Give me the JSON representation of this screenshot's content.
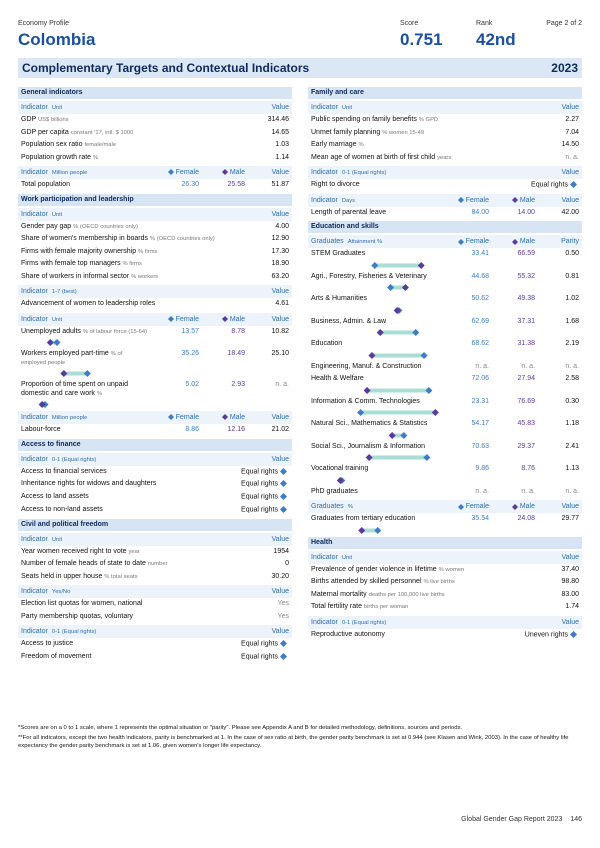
{
  "header": {
    "label": "Economy Profile",
    "country": "Colombia",
    "score_label": "Score",
    "score": "0.751",
    "rank_label": "Rank",
    "rank": "42nd",
    "page": "Page 2 of 2"
  },
  "title": "Complementary Targets and Contextual Indicators",
  "year": "2023",
  "colors": {
    "female": "#3d7cc9",
    "male": "#5b3a9e",
    "track": "#a9ddd6"
  },
  "left": [
    {
      "title": "General indicators",
      "blocks": [
        {
          "type": "table",
          "head": [
            "Indicator",
            "Unit",
            "Value"
          ],
          "rows": [
            {
              "name": "GDP",
              "unit": "US$ billions",
              "values": [
                "314.46"
              ]
            },
            {
              "name": "GDP per capita",
              "unit": "constant '17, intl. $ 1000",
              "values": [
                "14.65"
              ]
            },
            {
              "name": "Population sex ratio",
              "unit": "female/male",
              "values": [
                "1.03"
              ]
            },
            {
              "name": "Population growth rate",
              "unit": "%",
              "values": [
                "1.14"
              ]
            }
          ]
        },
        {
          "type": "table",
          "head": [
            "Indicator",
            "Million people",
            "Female",
            "Male",
            "Value"
          ],
          "rows": [
            {
              "name": "Total population",
              "values": [
                "26.30",
                "25.58",
                "51.87"
              ]
            }
          ]
        }
      ]
    },
    {
      "title": "Work participation and leadership",
      "blocks": [
        {
          "type": "table",
          "head": [
            "Indicator",
            "Unit",
            "Value"
          ],
          "rows": [
            {
              "name": "Gender pay gap",
              "unit": "% (OECD countries only)",
              "values": [
                "4.00"
              ]
            },
            {
              "name": "Share of women's membership in boards",
              "unit": "% (OECD countries only)",
              "values": [
                "12.90"
              ]
            },
            {
              "name": "Firms with female majority ownership",
              "unit": "% firms",
              "values": [
                "17.30"
              ]
            },
            {
              "name": "Firms with female top managers",
              "unit": "% firms",
              "values": [
                "18.90"
              ]
            },
            {
              "name": "Share of workers in informal sector",
              "unit": "% workers",
              "values": [
                "63.20"
              ]
            }
          ]
        },
        {
          "type": "table",
          "head": [
            "Indicator",
            "1-7 (best)",
            "Value"
          ],
          "rows": [
            {
              "name": "Advancement of women to leadership roles",
              "values": [
                "4.61"
              ]
            }
          ]
        },
        {
          "type": "gender-bars",
          "head": [
            "Indicator",
            "Unit",
            "Female",
            "Male",
            "Value"
          ],
          "rows": [
            {
              "name": "Unemployed adults",
              "unit": "% of labour force (15-64)",
              "values": [
                "13.57",
                "8.78",
                "10.82"
              ]
            },
            {
              "name": "Workers employed part-time",
              "unit": "% of employed people",
              "values": [
                "35.26",
                "18.49",
                "25.10"
              ]
            },
            {
              "name": "Proportion of time spent on unpaid domestic and care work",
              "unit": "%",
              "values": [
                "5.02",
                "2.93",
                "n. a."
              ]
            }
          ]
        },
        {
          "type": "table",
          "head": [
            "Indicator",
            "Million people",
            "Female",
            "Male",
            "Value"
          ],
          "rows": [
            {
              "name": "Labour-force",
              "values": [
                "8.86",
                "12.16",
                "21.02"
              ]
            }
          ]
        }
      ]
    },
    {
      "title": "Access to finance",
      "blocks": [
        {
          "type": "rights",
          "head": [
            "Indicator",
            "0-1 (Equal rights)",
            "Value"
          ],
          "rows": [
            {
              "name": "Access to financial services",
              "values": [
                "Equal rights"
              ]
            },
            {
              "name": "Inheritance rights for widows and daughters",
              "values": [
                "Equal rights"
              ]
            },
            {
              "name": "Access to land assets",
              "values": [
                "Equal rights"
              ]
            },
            {
              "name": "Access to non-land assets",
              "values": [
                "Equal rights"
              ]
            }
          ]
        }
      ]
    },
    {
      "title": "Civil and political freedom",
      "blocks": [
        {
          "type": "table",
          "head": [
            "Indicator",
            "Unit",
            "Value"
          ],
          "rows": [
            {
              "name": "Year women received right to vote",
              "unit": "year",
              "values": [
                "1954"
              ]
            },
            {
              "name": "Number of female heads of state to date",
              "unit": "number",
              "values": [
                "0"
              ]
            },
            {
              "name": "Seats held in upper house",
              "unit": "% total seats",
              "values": [
                "30.20"
              ]
            }
          ]
        },
        {
          "type": "table",
          "head": [
            "Indicator",
            "Yes/No",
            "Value"
          ],
          "rows": [
            {
              "name": "Election list quotas for women, national",
              "values": [
                "Yes"
              ]
            },
            {
              "name": "Party membership quotas, voluntary",
              "values": [
                "Yes"
              ]
            }
          ]
        },
        {
          "type": "rights",
          "head": [
            "Indicator",
            "0-1 (Equal rights)",
            "Value"
          ],
          "rows": [
            {
              "name": "Access to justice",
              "values": [
                "Equal rights"
              ]
            },
            {
              "name": "Freedom of movement",
              "values": [
                "Equal rights"
              ]
            }
          ]
        }
      ]
    }
  ],
  "right": [
    {
      "title": "Family and care",
      "blocks": [
        {
          "type": "table",
          "head": [
            "Indicator",
            "Unit",
            "Value"
          ],
          "rows": [
            {
              "name": "Public spending on family benefits",
              "unit": "% GPD",
              "values": [
                "2.27"
              ]
            },
            {
              "name": "Unmet family planning",
              "unit": "% women 15-49",
              "values": [
                "7.04"
              ]
            },
            {
              "name": "Early marriage",
              "unit": "%",
              "values": [
                "14.50"
              ]
            },
            {
              "name": "Mean age of women at birth of first child",
              "unit": "years",
              "values": [
                "n. a."
              ]
            }
          ]
        },
        {
          "type": "rights",
          "head": [
            "Indicator",
            "0-1 (Equal rights)",
            "Value"
          ],
          "rows": [
            {
              "name": "Right to divorce",
              "values": [
                "Equal rights"
              ]
            }
          ]
        },
        {
          "type": "table",
          "head": [
            "Indicator",
            "Days",
            "Female",
            "Male",
            "Value"
          ],
          "rows": [
            {
              "name": "Length of parental leave",
              "values": [
                "84.00",
                "14.00",
                "42.00"
              ]
            }
          ]
        }
      ]
    },
    {
      "title": "Education and skills",
      "blocks": [
        {
          "type": "gender-bars",
          "head": [
            "Graduates",
            "Attainment %",
            "Female",
            "Male",
            "Parity"
          ],
          "rows": [
            {
              "name": "STEM Graduates",
              "values": [
                "33.41",
                "66.59",
                "0.50"
              ]
            },
            {
              "name": "Agri., Forestry, Fisheries & Veterinary",
              "values": [
                "44.68",
                "55.32",
                "0.81"
              ]
            },
            {
              "name": "Arts & Humanities",
              "values": [
                "50.62",
                "49.38",
                "1.02"
              ]
            },
            {
              "name": "Business, Admin. & Law",
              "values": [
                "62.69",
                "37.31",
                "1.68"
              ]
            },
            {
              "name": "Education",
              "values": [
                "68.62",
                "31.38",
                "2.19"
              ]
            },
            {
              "name": "Engineering, Manuf. & Construction",
              "values": [
                "n. a.",
                "n. a.",
                "n. a."
              ]
            },
            {
              "name": "Health & Welfare",
              "values": [
                "72.06",
                "27.94",
                "2.58"
              ]
            },
            {
              "name": "Information & Comm. Technologies",
              "values": [
                "23.31",
                "76.69",
                "0.30"
              ]
            },
            {
              "name": "Natural Sci., Mathematics & Statistics",
              "values": [
                "54.17",
                "45.83",
                "1.18"
              ]
            },
            {
              "name": "Social Sci., Journalism & Information",
              "values": [
                "70.63",
                "29.37",
                "2.41"
              ]
            },
            {
              "name": "Vocational training",
              "values": [
                "9.86",
                "8.76",
                "1.13"
              ]
            },
            {
              "name": "PhD graduates",
              "values": [
                "n. a.",
                "n. a.",
                "n. a."
              ]
            }
          ]
        },
        {
          "type": "gender-bars",
          "head": [
            "Graduates",
            "%",
            "Female",
            "Male",
            "Value"
          ],
          "rows": [
            {
              "name": "Graduates from tertiary education",
              "values": [
                "35.54",
                "24.08",
                "29.77"
              ]
            }
          ]
        }
      ]
    },
    {
      "title": "Health",
      "blocks": [
        {
          "type": "table",
          "head": [
            "Indicator",
            "Unit",
            "Value"
          ],
          "rows": [
            {
              "name": "Prevalence of gender violence in lifetime",
              "unit": "% women",
              "values": [
                "37.40"
              ]
            },
            {
              "name": "Births attended by skilled personnel",
              "unit": "% live births",
              "values": [
                "98.80"
              ]
            },
            {
              "name": "Maternal mortality",
              "unit": "deaths per 100,000 live births",
              "values": [
                "83.00"
              ]
            },
            {
              "name": "Total fertility rate",
              "unit": "births per woman",
              "values": [
                "1.74"
              ]
            }
          ]
        },
        {
          "type": "rights",
          "head": [
            "Indicator",
            "0-1 (Equal rights)",
            "Value"
          ],
          "rows": [
            {
              "name": "Reproductive autonomy",
              "values": [
                "Uneven rights"
              ]
            }
          ]
        }
      ]
    }
  ],
  "notes": [
    "*Scores are on a 0 to 1 scale, where 1 represents the optimal situation or \"parity\". Please see Appendix A and B for detailed methodology, definitions, sources and periods.",
    "**For all indicators, except the two health indicators, parity is benchmarked at 1. In the case of sex ratio at birth, the gender parity benchmark is set at 0.944 (see Klasen and Wink, 2003). In the case of healthy life expectancy the gender parity benchmark is set at 1.06, given women's longer life expectancy."
  ],
  "footer": {
    "report": "Global Gender Gap Report 2023",
    "page": "146"
  }
}
